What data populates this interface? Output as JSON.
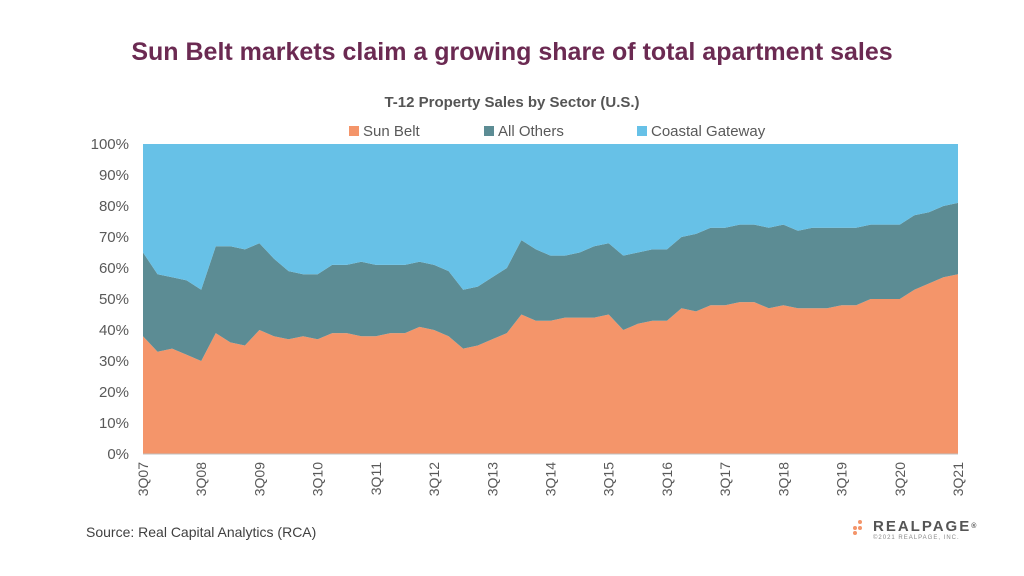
{
  "headline": "Sun Belt markets claim a growing share of total apartment sales",
  "source": "Source: Real Capital Analytics (RCA)",
  "logo": {
    "word": "REALPAGE",
    "trademark": "®",
    "copyright": "©2021 REALPAGE, INC."
  },
  "chart_data": {
    "type": "area",
    "stacked": true,
    "title": "T-12 Property Sales by Sector (U.S.)",
    "ylim": [
      0,
      100
    ],
    "y_ticks": [
      "0%",
      "10%",
      "20%",
      "30%",
      "40%",
      "50%",
      "60%",
      "70%",
      "80%",
      "90%",
      "100%"
    ],
    "x_tick_labels": [
      "3Q07",
      "3Q08",
      "3Q09",
      "3Q10",
      "3Q11",
      "3Q12",
      "3Q13",
      "3Q14",
      "3Q15",
      "3Q16",
      "3Q17",
      "3Q18",
      "3Q19",
      "3Q20",
      "3Q21"
    ],
    "legend_position": "top",
    "x": [
      "3Q07",
      "4Q07",
      "1Q08",
      "2Q08",
      "3Q08",
      "4Q08",
      "1Q09",
      "2Q09",
      "3Q09",
      "4Q09",
      "1Q10",
      "2Q10",
      "3Q10",
      "4Q10",
      "1Q11",
      "2Q11",
      "3Q11",
      "4Q11",
      "1Q12",
      "2Q12",
      "3Q12",
      "4Q12",
      "1Q13",
      "2Q13",
      "3Q13",
      "4Q13",
      "1Q14",
      "2Q14",
      "3Q14",
      "4Q14",
      "1Q15",
      "2Q15",
      "3Q15",
      "4Q15",
      "1Q16",
      "2Q16",
      "3Q16",
      "4Q16",
      "1Q17",
      "2Q17",
      "3Q17",
      "4Q17",
      "1Q18",
      "2Q18",
      "3Q18",
      "4Q18",
      "1Q19",
      "2Q19",
      "3Q19",
      "4Q19",
      "1Q20",
      "2Q20",
      "3Q20",
      "4Q20",
      "1Q21",
      "2Q21",
      "3Q21"
    ],
    "series": [
      {
        "name": "Sun Belt",
        "color": "#f4956a",
        "values": [
          38,
          33,
          34,
          32,
          30,
          39,
          36,
          35,
          40,
          38,
          37,
          38,
          37,
          39,
          39,
          38,
          38,
          39,
          39,
          41,
          40,
          38,
          34,
          35,
          37,
          39,
          45,
          43,
          43,
          44,
          44,
          44,
          45,
          40,
          42,
          43,
          43,
          47,
          46,
          48,
          48,
          49,
          49,
          47,
          48,
          47,
          47,
          47,
          48,
          48,
          50,
          50,
          50,
          53,
          55,
          57,
          58
        ]
      },
      {
        "name": "All Others",
        "color": "#5c8c94",
        "values": [
          27,
          25,
          23,
          24,
          23,
          28,
          31,
          31,
          28,
          25,
          22,
          20,
          21,
          22,
          22,
          24,
          23,
          22,
          22,
          21,
          21,
          21,
          19,
          19,
          20,
          21,
          24,
          23,
          21,
          20,
          21,
          23,
          23,
          24,
          23,
          23,
          23,
          23,
          25,
          25,
          25,
          25,
          25,
          26,
          26,
          25,
          26,
          26,
          25,
          25,
          24,
          24,
          24,
          24,
          23,
          23,
          23
        ]
      },
      {
        "name": "Coastal Gateway",
        "color": "#67c1e7",
        "values": [
          35,
          42,
          43,
          44,
          47,
          33,
          33,
          34,
          32,
          37,
          41,
          42,
          42,
          39,
          39,
          38,
          39,
          39,
          39,
          38,
          39,
          41,
          47,
          46,
          43,
          40,
          31,
          34,
          36,
          36,
          35,
          33,
          32,
          36,
          35,
          34,
          34,
          30,
          29,
          27,
          27,
          26,
          26,
          27,
          26,
          28,
          27,
          27,
          27,
          27,
          26,
          26,
          26,
          23,
          22,
          20,
          19
        ]
      }
    ]
  }
}
